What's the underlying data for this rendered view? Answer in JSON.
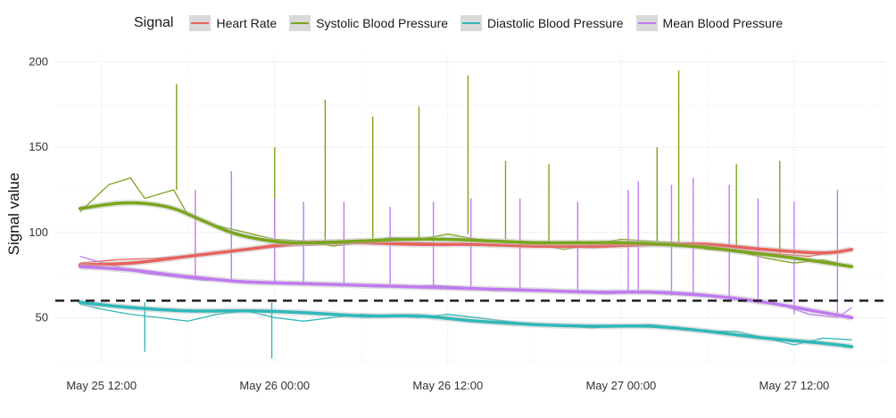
{
  "legend": {
    "title": "Signal",
    "items": [
      {
        "label": "Heart Rate",
        "color": "#e8635d"
      },
      {
        "label": "Systolic Blood Pressure",
        "color": "#7aa61d"
      },
      {
        "label": "Diastolic Blood Pressure",
        "color": "#2fb8b8"
      },
      {
        "label": "Mean Blood Pressure",
        "color": "#c07af0"
      }
    ]
  },
  "chart_data": {
    "type": "line",
    "ylabel": "Signal value",
    "xlabel": "",
    "y_ticks": [
      50,
      100,
      150,
      200
    ],
    "ylim": [
      22,
      205
    ],
    "x_ticks": [
      "May 25 12:00",
      "May 26 00:00",
      "May 26 12:00",
      "May 27 00:00",
      "May 27 12:00"
    ],
    "x_tick_hours": [
      0,
      12,
      24,
      36,
      48
    ],
    "xlim_hours": [
      -3.2,
      54.5
    ],
    "reference_line": {
      "y": 60,
      "style": "dashed",
      "color": "#222222"
    },
    "series": [
      {
        "name": "Heart Rate",
        "color": "#e8635d",
        "x": [
          -1.5,
          1,
          4,
          7,
          10,
          13,
          16,
          19,
          22,
          25,
          28,
          31,
          34,
          37,
          40,
          43,
          46,
          49,
          52
        ],
        "y": [
          82,
          84,
          85,
          87,
          90,
          92,
          93,
          94,
          94,
          93,
          93,
          92,
          91,
          92,
          93,
          91,
          88,
          86,
          90
        ],
        "smooth_x": [
          -1.5,
          2,
          6,
          10,
          14,
          18,
          22,
          26,
          30,
          34,
          38,
          42,
          46,
          50,
          52
        ],
        "smooth_y": [
          81,
          82,
          86,
          90,
          94,
          94,
          93,
          93,
          92,
          92,
          93,
          93,
          90,
          88,
          90
        ]
      },
      {
        "name": "Systolic Blood Pressure",
        "color": "#7aa61d",
        "x": [
          -1.5,
          0.5,
          2,
          3,
          5,
          6,
          8,
          10,
          12,
          14,
          16,
          18,
          20,
          22,
          24,
          26,
          28,
          30,
          32,
          34,
          36,
          38,
          40,
          42,
          44,
          46,
          48,
          50,
          52
        ],
        "y": [
          112,
          128,
          132,
          120,
          125,
          110,
          104,
          100,
          96,
          95,
          92,
          94,
          97,
          96,
          99,
          96,
          95,
          94,
          90,
          93,
          96,
          95,
          94,
          90,
          89,
          85,
          82,
          84,
          80
        ],
        "smooth_x": [
          -1.5,
          1,
          3,
          5,
          7,
          9,
          11,
          13,
          15,
          18,
          21,
          24,
          27,
          30,
          33,
          36,
          39,
          42,
          45,
          48,
          52
        ],
        "smooth_y": [
          114,
          117,
          117,
          114,
          107,
          100,
          96,
          94,
          94,
          95,
          96,
          96,
          95,
          94,
          94,
          94,
          93,
          91,
          88,
          85,
          80
        ],
        "spikes_x": [
          5.2,
          12,
          15.5,
          18.8,
          22,
          25.4,
          28,
          31,
          38.5,
          40,
          44,
          47
        ],
        "spikes_y": [
          187,
          150,
          178,
          168,
          174,
          192,
          142,
          140,
          150,
          195,
          140,
          142
        ]
      },
      {
        "name": "Diastolic Blood Pressure",
        "color": "#2fb8b8",
        "x": [
          -1.5,
          0,
          2,
          4,
          6,
          8,
          10,
          12,
          14,
          16,
          18,
          20,
          22,
          24,
          26,
          28,
          30,
          32,
          34,
          36,
          38,
          40,
          42,
          44,
          46,
          48,
          50,
          52
        ],
        "y": [
          58,
          55,
          52,
          50,
          48,
          52,
          54,
          50,
          48,
          50,
          52,
          51,
          50,
          52,
          50,
          48,
          46,
          45,
          44,
          45,
          46,
          44,
          42,
          42,
          38,
          34,
          38,
          37
        ],
        "smooth_x": [
          -1.5,
          2,
          6,
          10,
          14,
          18,
          22,
          26,
          30,
          34,
          38,
          42,
          46,
          50,
          52
        ],
        "smooth_y": [
          59,
          56,
          54,
          54,
          53,
          51,
          51,
          48,
          46,
          45,
          45,
          42,
          38,
          35,
          33
        ],
        "dips_x": [
          3,
          11.8
        ],
        "dips_y": [
          30,
          26
        ]
      },
      {
        "name": "Mean Blood Pressure",
        "color": "#c07af0",
        "x": [
          -1.5,
          1,
          3,
          5,
          7,
          9,
          11,
          13,
          15,
          17,
          19,
          21,
          23,
          25,
          27,
          29,
          31,
          33,
          35,
          37,
          39,
          41,
          43,
          45,
          47,
          49,
          51,
          52
        ],
        "y": [
          86,
          80,
          76,
          74,
          72,
          72,
          71,
          70,
          70,
          69,
          68,
          68,
          69,
          68,
          66,
          66,
          66,
          65,
          64,
          65,
          64,
          63,
          62,
          60,
          58,
          52,
          50,
          56
        ],
        "smooth_x": [
          -1.5,
          2,
          6,
          10,
          14,
          18,
          22,
          26,
          30,
          34,
          38,
          42,
          46,
          50,
          52
        ],
        "smooth_y": [
          80,
          78,
          74,
          71,
          70,
          69,
          68,
          67,
          66,
          65,
          65,
          63,
          59,
          53,
          50
        ],
        "spikes_x": [
          6.5,
          9,
          12,
          14,
          16.8,
          20,
          23,
          25.6,
          29,
          33,
          36.5,
          37.2,
          39.5,
          41,
          43.5,
          45.5,
          48,
          51
        ],
        "spikes_y": [
          125,
          136,
          120,
          118,
          118,
          115,
          118,
          120,
          120,
          118,
          125,
          130,
          128,
          132,
          128,
          120,
          118,
          125
        ]
      }
    ]
  }
}
